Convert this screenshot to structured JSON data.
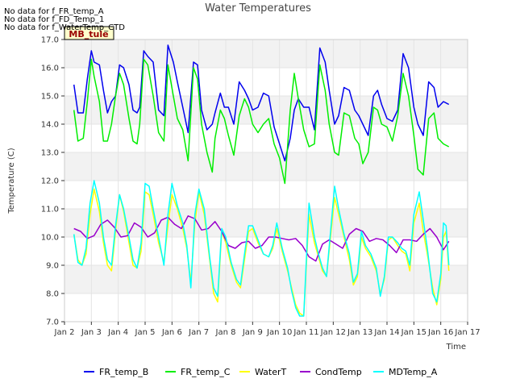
{
  "notes": [
    "No data for f_FR_temp_A",
    "No data for f_FD_Temp_1",
    "No data for f_WaterTemp_CTD"
  ],
  "site_tag": "MB_tule",
  "chart_data": {
    "type": "line",
    "title": "Water Temperatures",
    "xlabel": "Time",
    "ylabel": "Temperature (C)",
    "xlim": [
      2,
      17
    ],
    "ylim": [
      7.0,
      17.0
    ],
    "x_ticks": [
      {
        "v": 2,
        "label": "Jan 2"
      },
      {
        "v": 3,
        "label": "Jan 3"
      },
      {
        "v": 4,
        "label": "Jan 4"
      },
      {
        "v": 5,
        "label": "Jan 5"
      },
      {
        "v": 6,
        "label": "Jan 6"
      },
      {
        "v": 7,
        "label": "Jan 7"
      },
      {
        "v": 8,
        "label": "Jan 8"
      },
      {
        "v": 9,
        "label": "Jan 9"
      },
      {
        "v": 10,
        "label": "Jan 10"
      },
      {
        "v": 11,
        "label": "Jan 11"
      },
      {
        "v": 12,
        "label": "Jan 12"
      },
      {
        "v": 13,
        "label": "Jan 13"
      },
      {
        "v": 14,
        "label": "Jan 14"
      },
      {
        "v": 15,
        "label": "Jan 15"
      },
      {
        "v": 16,
        "label": "Jan 16"
      },
      {
        "v": 17,
        "label": "Jan 17"
      }
    ],
    "y_ticks": [
      {
        "v": 7,
        "label": "7.0"
      },
      {
        "v": 8,
        "label": "8.0"
      },
      {
        "v": 9,
        "label": "9.0"
      },
      {
        "v": 10,
        "label": "10.0"
      },
      {
        "v": 11,
        "label": "11.0"
      },
      {
        "v": 12,
        "label": "12.0"
      },
      {
        "v": 13,
        "label": "13.0"
      },
      {
        "v": 14,
        "label": "14.0"
      },
      {
        "v": 15,
        "label": "15.0"
      },
      {
        "v": 16,
        "label": "16.0"
      },
      {
        "v": 17,
        "label": "17.0"
      }
    ],
    "grid": true,
    "banded_background": true,
    "legend_position": "bottom",
    "series": [
      {
        "name": "FR_temp_B",
        "color": "#0000ee",
        "x": [
          2.35,
          2.5,
          2.7,
          2.85,
          3.0,
          3.1,
          3.3,
          3.45,
          3.6,
          3.75,
          3.9,
          4.05,
          4.2,
          4.4,
          4.55,
          4.7,
          4.8,
          4.95,
          5.1,
          5.3,
          5.5,
          5.7,
          5.85,
          6.05,
          6.2,
          6.4,
          6.6,
          6.8,
          6.95,
          7.1,
          7.3,
          7.5,
          7.6,
          7.8,
          7.95,
          8.1,
          8.3,
          8.5,
          8.7,
          8.85,
          9.0,
          9.2,
          9.4,
          9.6,
          9.8,
          10.0,
          10.2,
          10.4,
          10.55,
          10.7,
          10.9,
          11.1,
          11.3,
          11.5,
          11.7,
          11.85,
          12.05,
          12.2,
          12.4,
          12.6,
          12.8,
          12.95,
          13.1,
          13.3,
          13.5,
          13.65,
          13.8,
          14.0,
          14.2,
          14.4,
          14.6,
          14.8,
          15.0,
          15.15,
          15.35,
          15.55,
          15.75,
          15.9,
          16.1,
          16.3
        ],
        "y": [
          15.4,
          14.4,
          14.4,
          15.6,
          16.6,
          16.2,
          16.1,
          15.2,
          14.4,
          14.8,
          15.0,
          16.1,
          16.0,
          15.4,
          14.5,
          14.4,
          14.6,
          16.6,
          16.4,
          16.2,
          14.5,
          14.3,
          16.8,
          16.2,
          15.5,
          14.6,
          13.7,
          16.2,
          16.1,
          14.5,
          13.8,
          14.0,
          14.4,
          15.1,
          14.6,
          14.6,
          14.0,
          15.5,
          15.2,
          14.9,
          14.5,
          14.6,
          15.1,
          15.0,
          13.9,
          13.3,
          12.7,
          13.5,
          14.5,
          14.9,
          14.6,
          14.6,
          13.8,
          16.7,
          16.2,
          15.2,
          14.0,
          14.3,
          15.3,
          15.2,
          14.5,
          14.3,
          14.0,
          13.6,
          15.0,
          15.2,
          14.7,
          14.2,
          14.1,
          14.5,
          16.5,
          16.0,
          14.6,
          14.0,
          13.6,
          15.5,
          15.3,
          14.6,
          14.8,
          14.7
        ]
      },
      {
        "name": "FR_temp_C",
        "color": "#00ee00",
        "x": [
          2.35,
          2.5,
          2.7,
          2.85,
          3.0,
          3.1,
          3.3,
          3.45,
          3.6,
          3.75,
          3.9,
          4.05,
          4.2,
          4.4,
          4.55,
          4.7,
          4.8,
          4.95,
          5.1,
          5.3,
          5.5,
          5.7,
          5.85,
          6.05,
          6.2,
          6.4,
          6.6,
          6.8,
          6.95,
          7.1,
          7.3,
          7.5,
          7.6,
          7.8,
          7.95,
          8.1,
          8.3,
          8.5,
          8.7,
          8.85,
          9.0,
          9.2,
          9.4,
          9.6,
          9.8,
          10.0,
          10.2,
          10.4,
          10.55,
          10.7,
          10.9,
          11.1,
          11.3,
          11.5,
          11.7,
          11.85,
          12.05,
          12.2,
          12.4,
          12.6,
          12.8,
          12.95,
          13.1,
          13.3,
          13.5,
          13.65,
          13.8,
          14.0,
          14.2,
          14.4,
          14.6,
          14.8,
          15.0,
          15.15,
          15.35,
          15.55,
          15.75,
          15.9,
          16.1,
          16.3
        ],
        "y": [
          14.5,
          13.4,
          13.5,
          14.8,
          16.3,
          15.7,
          14.8,
          13.4,
          13.4,
          14.0,
          15.0,
          15.8,
          15.4,
          14.2,
          13.4,
          13.3,
          14.0,
          16.3,
          16.1,
          15.0,
          13.7,
          13.4,
          16.1,
          15.0,
          14.2,
          13.8,
          12.7,
          16.0,
          15.6,
          14.0,
          13.0,
          12.3,
          13.5,
          14.5,
          14.2,
          13.6,
          12.9,
          14.3,
          14.9,
          14.6,
          14.0,
          13.7,
          14.0,
          14.2,
          13.3,
          12.8,
          11.9,
          14.5,
          15.8,
          14.9,
          13.8,
          13.2,
          13.3,
          16.1,
          15.2,
          14.0,
          13.0,
          12.9,
          14.4,
          14.3,
          13.5,
          13.3,
          12.6,
          13.0,
          14.6,
          14.5,
          14.0,
          13.9,
          13.4,
          14.3,
          15.8,
          15.0,
          13.6,
          12.4,
          12.2,
          14.2,
          14.4,
          13.5,
          13.3,
          13.2
        ]
      },
      {
        "name": "WaterT",
        "color": "#ffff00",
        "x": [
          2.35,
          2.5,
          2.65,
          2.8,
          2.95,
          3.1,
          3.3,
          3.45,
          3.6,
          3.75,
          3.9,
          4.05,
          4.2,
          4.4,
          4.55,
          4.7,
          4.85,
          5.0,
          5.15,
          5.3,
          5.5,
          5.7,
          5.85,
          6.0,
          6.2,
          6.4,
          6.55,
          6.7,
          6.85,
          7.0,
          7.2,
          7.4,
          7.55,
          7.7,
          7.85,
          8.0,
          8.2,
          8.4,
          8.55,
          8.7,
          8.85,
          9.0,
          9.2,
          9.4,
          9.6,
          9.75,
          9.9,
          10.1,
          10.3,
          10.45,
          10.6,
          10.75,
          10.9,
          11.1,
          11.3,
          11.45,
          11.6,
          11.75,
          11.9,
          12.05,
          12.2,
          12.4,
          12.6,
          12.75,
          12.9,
          13.05,
          13.2,
          13.4,
          13.6,
          13.75,
          13.9,
          14.05,
          14.2,
          14.4,
          14.55,
          14.7,
          14.85,
          15.0,
          15.2,
          15.35,
          15.5,
          15.7,
          15.85,
          16.0,
          16.1,
          16.2,
          16.3
        ],
        "y": [
          10.1,
          9.2,
          9.0,
          9.4,
          10.8,
          11.7,
          10.9,
          9.8,
          9.0,
          8.8,
          10.2,
          11.5,
          10.9,
          9.8,
          9.0,
          8.9,
          9.5,
          11.6,
          11.5,
          10.8,
          9.8,
          9.1,
          10.4,
          11.5,
          11.0,
          10.3,
          9.6,
          8.4,
          10.5,
          11.6,
          10.8,
          9.2,
          8.0,
          7.7,
          10.2,
          9.8,
          9.0,
          8.4,
          8.2,
          9.2,
          10.2,
          10.3,
          9.8,
          9.4,
          9.3,
          9.6,
          10.3,
          9.5,
          8.8,
          8.2,
          7.6,
          7.3,
          7.2,
          10.8,
          9.8,
          9.3,
          8.8,
          8.6,
          10.0,
          11.4,
          10.8,
          10.0,
          9.2,
          8.3,
          8.6,
          10.0,
          9.6,
          9.3,
          8.8,
          8.0,
          8.5,
          9.9,
          10.0,
          9.7,
          9.5,
          9.4,
          8.8,
          10.5,
          11.2,
          10.2,
          9.4,
          8.2,
          7.6,
          8.5,
          10.0,
          10.2,
          8.8
        ]
      },
      {
        "name": "CondTemp",
        "color": "#9900cc",
        "x": [
          2.35,
          2.6,
          2.85,
          3.1,
          3.35,
          3.6,
          3.85,
          4.1,
          4.35,
          4.6,
          4.85,
          5.1,
          5.35,
          5.6,
          5.85,
          6.1,
          6.35,
          6.6,
          6.85,
          7.1,
          7.35,
          7.6,
          7.85,
          8.1,
          8.35,
          8.6,
          8.85,
          9.1,
          9.35,
          9.6,
          9.85,
          10.1,
          10.35,
          10.6,
          10.85,
          11.1,
          11.35,
          11.6,
          11.85,
          12.1,
          12.35,
          12.6,
          12.85,
          13.1,
          13.35,
          13.6,
          13.85,
          14.1,
          14.35,
          14.6,
          14.85,
          15.1,
          15.35,
          15.6,
          15.85,
          16.1,
          16.3
        ],
        "y": [
          10.3,
          10.2,
          9.95,
          10.05,
          10.45,
          10.6,
          10.35,
          10.0,
          10.05,
          10.5,
          10.35,
          10.0,
          10.15,
          10.6,
          10.7,
          10.45,
          10.3,
          10.75,
          10.65,
          10.25,
          10.3,
          10.55,
          10.2,
          9.7,
          9.6,
          9.8,
          9.85,
          9.6,
          9.7,
          10.0,
          10.0,
          9.95,
          9.9,
          9.95,
          9.7,
          9.3,
          9.15,
          9.75,
          9.9,
          9.75,
          9.6,
          10.1,
          10.3,
          10.2,
          9.85,
          9.95,
          9.9,
          9.7,
          9.45,
          9.9,
          9.9,
          9.85,
          10.1,
          10.3,
          10.0,
          9.55,
          9.85
        ]
      },
      {
        "name": "MDTemp_A",
        "color": "#00ffff",
        "x": [
          2.35,
          2.5,
          2.65,
          2.8,
          2.95,
          3.1,
          3.3,
          3.45,
          3.6,
          3.75,
          3.9,
          4.05,
          4.2,
          4.4,
          4.55,
          4.7,
          4.85,
          5.0,
          5.15,
          5.3,
          5.5,
          5.7,
          5.85,
          6.0,
          6.2,
          6.4,
          6.55,
          6.7,
          6.85,
          7.0,
          7.2,
          7.4,
          7.55,
          7.7,
          7.85,
          8.0,
          8.2,
          8.4,
          8.55,
          8.7,
          8.85,
          9.0,
          9.2,
          9.4,
          9.6,
          9.75,
          9.9,
          10.1,
          10.3,
          10.45,
          10.6,
          10.75,
          10.9,
          11.1,
          11.3,
          11.45,
          11.6,
          11.75,
          11.9,
          12.05,
          12.2,
          12.4,
          12.6,
          12.75,
          12.9,
          13.05,
          13.2,
          13.4,
          13.6,
          13.75,
          13.9,
          14.05,
          14.2,
          14.4,
          14.55,
          14.7,
          14.85,
          15.0,
          15.2,
          15.35,
          15.5,
          15.7,
          15.85,
          16.0,
          16.1,
          16.2,
          16.3
        ],
        "y": [
          10.1,
          9.1,
          9.0,
          9.6,
          11.2,
          12.0,
          11.2,
          10.0,
          9.2,
          9.0,
          10.4,
          11.5,
          11.0,
          10.0,
          9.2,
          8.9,
          9.8,
          11.9,
          11.8,
          11.0,
          10.0,
          9.0,
          10.8,
          11.9,
          11.1,
          10.5,
          9.7,
          8.2,
          10.8,
          11.7,
          11.0,
          9.3,
          8.2,
          7.9,
          10.3,
          10.0,
          9.1,
          8.5,
          8.3,
          9.4,
          10.4,
          10.4,
          9.9,
          9.4,
          9.3,
          9.7,
          10.5,
          9.6,
          8.9,
          8.1,
          7.5,
          7.2,
          7.2,
          11.2,
          10.0,
          9.4,
          8.9,
          8.6,
          10.2,
          11.8,
          11.0,
          10.1,
          9.4,
          8.4,
          8.7,
          10.2,
          9.7,
          9.4,
          8.9,
          7.9,
          8.6,
          10.0,
          10.0,
          9.8,
          9.6,
          9.5,
          9.0,
          10.8,
          11.6,
          10.6,
          9.6,
          8.0,
          7.7,
          8.7,
          10.5,
          10.4,
          9.0
        ]
      }
    ]
  }
}
